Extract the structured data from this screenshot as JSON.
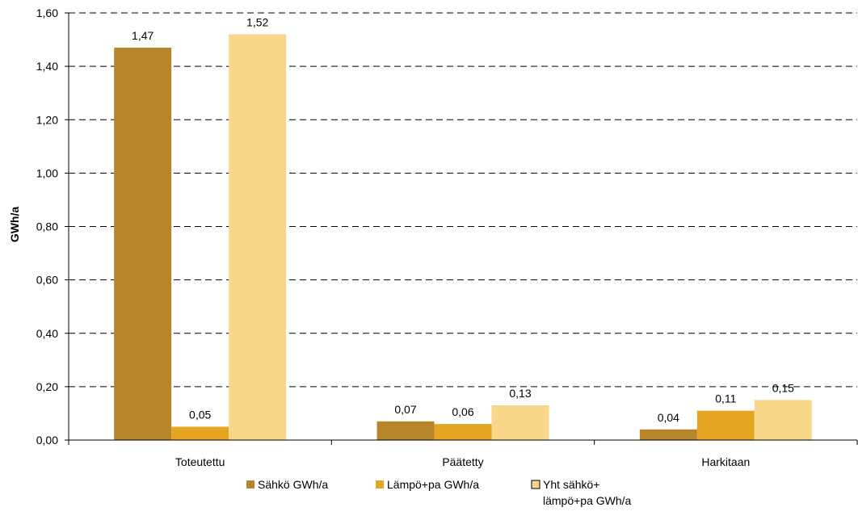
{
  "chart_data": {
    "type": "bar",
    "categories": [
      "Toteutettu",
      "Päätetty",
      "Harkitaan"
    ],
    "series": [
      {
        "name": "Sähkö GWh/a",
        "color": "#b8862a",
        "values": [
          1.47,
          0.07,
          0.04
        ],
        "labels": [
          "1,47",
          "0,07",
          "0,04"
        ]
      },
      {
        "name": "Lämpö+pa GWh/a",
        "color": "#e6a520",
        "values": [
          0.05,
          0.06,
          0.11
        ],
        "labels": [
          "0,05",
          "0,06",
          "0,11"
        ]
      },
      {
        "name": "Yht sähkö+ lämpö+pa GWh/a",
        "legend_lines": [
          "Yht sähkö+",
          "lämpö+pa GWh/a"
        ],
        "color": "#f8d68a",
        "values": [
          1.52,
          0.13,
          0.15
        ],
        "labels": [
          "1,52",
          "0,13",
          "0,15"
        ]
      }
    ],
    "ylabel": "GWh/a",
    "xlabel": "",
    "ylim": [
      0,
      1.6
    ],
    "yticks": [
      "0,00",
      "0,20",
      "0,40",
      "0,60",
      "0,80",
      "1,00",
      "1,20",
      "1,40",
      "1,60"
    ],
    "grid": true,
    "legend_position": "bottom"
  }
}
